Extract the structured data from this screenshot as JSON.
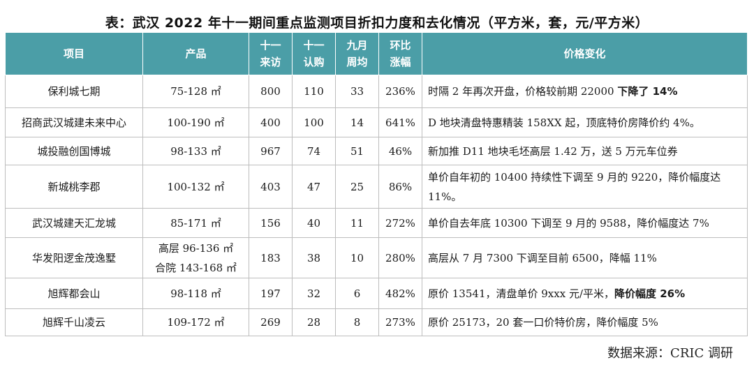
{
  "title": "表：武汉 2022 年十一期间重点监测项目折扣力度和去化情况（平方米，套，元/平方米）",
  "headers": {
    "project": "项目",
    "product": "产品",
    "visits": [
      "十一",
      "来访"
    ],
    "subscriptions": [
      "十一",
      "认购"
    ],
    "sept_weekly": [
      "九月",
      "周均"
    ],
    "mom": [
      "环比",
      "涨幅"
    ],
    "price_change": "价格变化"
  },
  "rows": [
    {
      "project": "保利城七期",
      "product": [
        "75-128 ㎡"
      ],
      "visits": "800",
      "subscriptions": "110",
      "sept_weekly": "33",
      "mom": "236%",
      "change": "时隔 2 年再次开盘，价格较前期 22000 ",
      "change_bold": "下降了 14%"
    },
    {
      "project": "招商武汉城建未来中心",
      "product": [
        "100-190 ㎡"
      ],
      "visits": "400",
      "subscriptions": "100",
      "sept_weekly": "14",
      "mom": "641%",
      "change": "D 地块清盘特惠精装 158XX 起，顶底特价房降价约 4%。",
      "change_bold": ""
    },
    {
      "project": "城投融创国博城",
      "product": [
        "98-133 ㎡"
      ],
      "visits": "967",
      "subscriptions": "74",
      "sept_weekly": "51",
      "mom": "46%",
      "change": "新加推 D11 地块毛坯高层 1.42 万，送 5 万元车位券",
      "change_bold": ""
    },
    {
      "project": "新城桃李郡",
      "product": [
        "100-132 ㎡"
      ],
      "visits": "403",
      "subscriptions": "47",
      "sept_weekly": "25",
      "mom": "86%",
      "change": "单价自年初的 10400 持续性下调至 9 月的 9220，降价幅度达 11%。",
      "change_bold": ""
    },
    {
      "project": "武汉城建天汇龙城",
      "product": [
        "85-171 ㎡"
      ],
      "visits": "156",
      "subscriptions": "40",
      "sept_weekly": "11",
      "mom": "272%",
      "change": "单价自去年底 10300 下调至 9 月的 9588，降价幅度达 7%",
      "change_bold": ""
    },
    {
      "project": "华发阳逻金茂逸墅",
      "product": [
        "高层 96-136 ㎡",
        "合院 143-168 ㎡"
      ],
      "visits": "183",
      "subscriptions": "38",
      "sept_weekly": "10",
      "mom": "280%",
      "change": "高层从 7 月 7300 下调至目前 6500，降幅 11%",
      "change_bold": ""
    },
    {
      "project": "旭辉都会山",
      "product": [
        "98-118 ㎡"
      ],
      "visits": "197",
      "subscriptions": "32",
      "sept_weekly": "6",
      "mom": "482%",
      "change": "原价 13541，清盘单价 9xxx 元/平米，",
      "change_bold": "降价幅度 26%"
    },
    {
      "project": "旭辉千山凌云",
      "product": [
        "109-172 ㎡"
      ],
      "visits": "269",
      "subscriptions": "28",
      "sept_weekly": "8",
      "mom": "273%",
      "change": "原价 25173，20 套一口价特价房，降价幅度 5%",
      "change_bold": ""
    }
  ],
  "source": "数据来源：CRIC 调研",
  "colors": {
    "header_bg": "#4b9ea7",
    "header_text": "#ffffff",
    "border": "#bdbdbd"
  }
}
